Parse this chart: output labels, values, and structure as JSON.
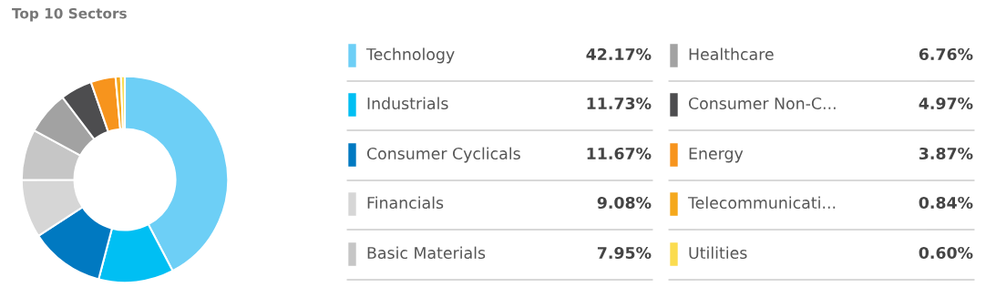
{
  "chart_data": {
    "type": "donut",
    "title": "Top 10 Sectors",
    "categories": [
      "Technology",
      "Industrials",
      "Consumer Cyclicals",
      "Financials",
      "Basic Materials",
      "Healthcare",
      "Consumer Non-C...",
      "Energy",
      "Telecommunicati...",
      "Utilities"
    ],
    "values": [
      42.17,
      11.73,
      11.67,
      9.08,
      7.95,
      6.76,
      4.97,
      3.87,
      0.84,
      0.6
    ],
    "value_labels": [
      "42.17%",
      "11.73%",
      "11.67%",
      "9.08%",
      "7.95%",
      "6.76%",
      "4.97%",
      "3.87%",
      "0.84%",
      "0.60%"
    ],
    "colors": [
      "#6dcff6",
      "#00bff3",
      "#0079c1",
      "#d6d6d6",
      "#c6c6c6",
      "#a2a2a2",
      "#4d4d4f",
      "#f7941d",
      "#f5a81c",
      "#fbdc4f"
    ],
    "legend": "right"
  }
}
